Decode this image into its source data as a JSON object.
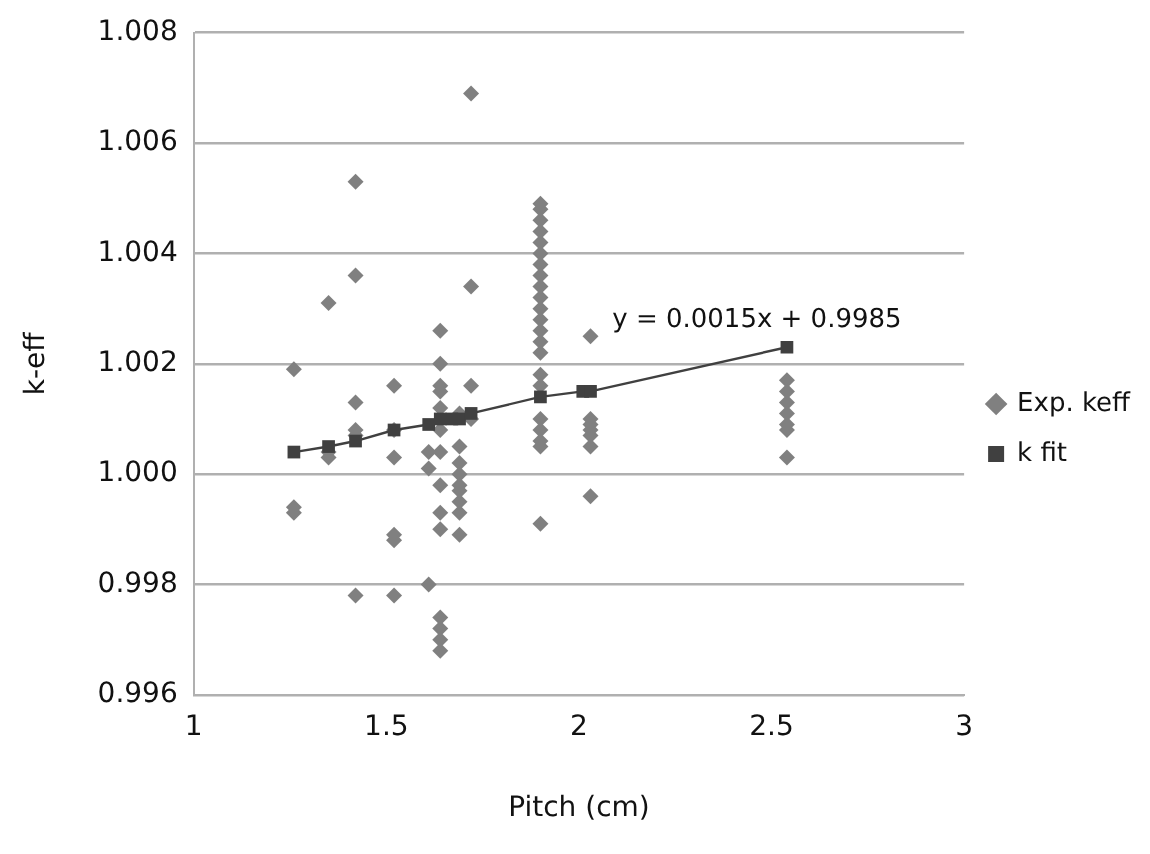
{
  "chart_data": {
    "type": "scatter",
    "xlabel": "Pitch (cm)",
    "ylabel": "k-eff",
    "xlim": [
      1,
      3
    ],
    "xticks": [
      1,
      1.5,
      2,
      2.5,
      3
    ],
    "ylim": [
      0.996,
      1.008
    ],
    "yticks": [
      {
        "value": 0.996,
        "label": "0.996"
      },
      {
        "value": 0.998,
        "label": "0.998"
      },
      {
        "value": 1,
        "label": "1.000"
      },
      {
        "value": 1.002,
        "label": "1.002"
      },
      {
        "value": 1.004,
        "label": "1.004"
      },
      {
        "value": 1.006,
        "label": "1.006"
      },
      {
        "value": 1.008,
        "label": "1.008"
      }
    ],
    "grid": "y",
    "legend": "right",
    "annotations": [
      {
        "text": "y = 0.0015x + 0.9985",
        "x": 2.54,
        "y": 1.0023
      }
    ],
    "series": [
      {
        "name": "Exp. keff",
        "type": "scatter",
        "marker": "diamond",
        "color": "#808080",
        "x": [
          1.26,
          1.26,
          1.26,
          1.35,
          1.35,
          1.35,
          1.42,
          1.42,
          1.42,
          1.42,
          1.42,
          1.42,
          1.52,
          1.52,
          1.52,
          1.52,
          1.52,
          1.52,
          1.61,
          1.61,
          1.61,
          1.64,
          1.64,
          1.64,
          1.64,
          1.64,
          1.64,
          1.64,
          1.64,
          1.64,
          1.64,
          1.64,
          1.64,
          1.64,
          1.64,
          1.69,
          1.69,
          1.69,
          1.69,
          1.69,
          1.69,
          1.69,
          1.69,
          1.69,
          1.72,
          1.72,
          1.72,
          1.72,
          1.9,
          1.9,
          1.9,
          1.9,
          1.9,
          1.9,
          1.9,
          1.9,
          1.9,
          1.9,
          1.9,
          1.9,
          1.9,
          1.9,
          1.9,
          1.9,
          1.9,
          1.9,
          1.9,
          1.9,
          1.9,
          1.9,
          2.03,
          2.03,
          2.03,
          2.03,
          2.03,
          2.03,
          2.03,
          2.54,
          2.54,
          2.54,
          2.54,
          2.54,
          2.54,
          2.54
        ],
        "values": [
          1.0019,
          0.9994,
          0.9993,
          1.0031,
          1.0004,
          1.0003,
          1.0053,
          1.0036,
          1.0013,
          1.0008,
          1.0007,
          0.9978,
          1.0016,
          1.0008,
          1.0003,
          0.9989,
          0.9988,
          0.9978,
          1.0004,
          1.0001,
          0.998,
          1.0026,
          1.002,
          1.0016,
          1.0015,
          1.0012,
          1.0008,
          1.0004,
          0.9998,
          0.9993,
          0.999,
          0.9974,
          0.9972,
          0.997,
          0.9968,
          1.0011,
          1.0005,
          1.0002,
          1.0,
          0.9998,
          0.9997,
          0.9995,
          0.9993,
          0.9989,
          1.0069,
          1.0034,
          1.0016,
          1.001,
          1.0049,
          1.0048,
          1.0046,
          1.0044,
          1.0042,
          1.004,
          1.0038,
          1.0036,
          1.0034,
          1.0032,
          1.003,
          1.0028,
          1.0026,
          1.0024,
          1.0022,
          1.0018,
          1.0016,
          1.001,
          1.0008,
          1.0006,
          1.0005,
          0.9991,
          1.0025,
          1.001,
          1.0009,
          1.0008,
          1.0007,
          1.0005,
          0.9996,
          1.0017,
          1.0015,
          1.0013,
          1.0011,
          1.0009,
          1.0008,
          1.0003
        ]
      },
      {
        "name": "k fit",
        "type": "line",
        "marker": "square",
        "line_style": "solid",
        "color": "#404040",
        "x": [
          1.26,
          1.35,
          1.42,
          1.43,
          1.52,
          1.61,
          1.64,
          1.67,
          1.69,
          1.72,
          1.9,
          2.01,
          2.03,
          2.54
        ],
        "values": [
          1.0004,
          1.0005,
          1.0006,
          null,
          1.0008,
          1.0009,
          1.001,
          1.001,
          1.001,
          1.0011,
          1.0014,
          1.0015,
          1.0015,
          1.0023
        ]
      }
    ]
  }
}
